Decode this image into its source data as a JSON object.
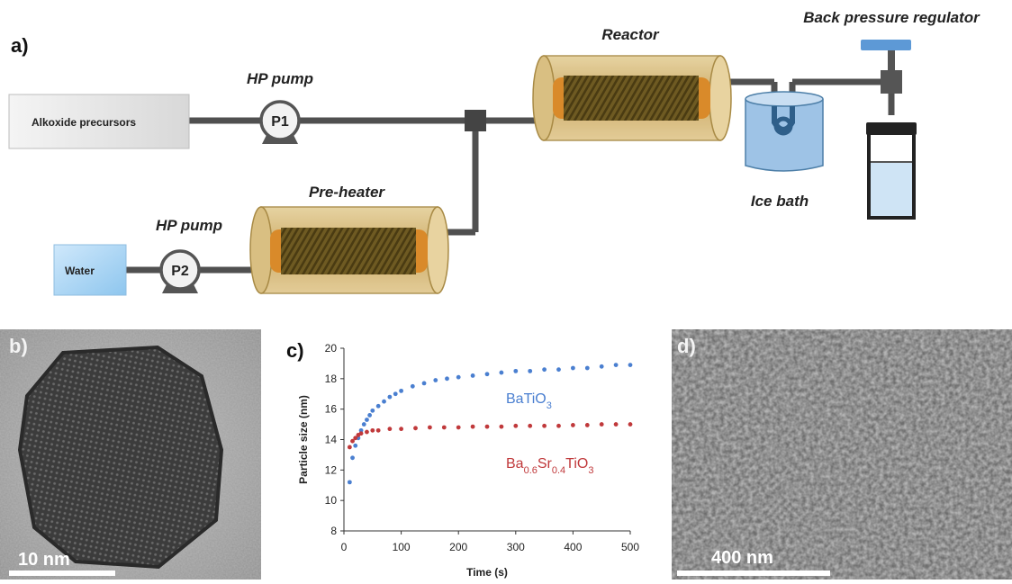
{
  "panel_a": {
    "label": "a)",
    "alkoxide_label": "Alkoxide precursors",
    "water_label": "Water",
    "pump1_name": "P1",
    "pump2_name": "P2",
    "pump1_caption": "HP pump",
    "pump2_caption": "HP pump",
    "preheater_label": "Pre-heater",
    "reactor_label": "Reactor",
    "ice_bath_label": "Ice bath",
    "bpr_label": "Back pressure regulator"
  },
  "panel_b": {
    "label": "b)",
    "scale_label": "10 nm"
  },
  "panel_d": {
    "label": "d)",
    "scale_label": "400 nm"
  },
  "chart_data": {
    "label": "c)",
    "type": "scatter",
    "title": "",
    "xlabel": "Time (s)",
    "ylabel": "Particle size (nm)",
    "xlim": [
      0,
      500
    ],
    "ylim": [
      8,
      20
    ],
    "x_ticks": [
      0,
      100,
      200,
      300,
      400,
      500
    ],
    "y_ticks": [
      8,
      10,
      12,
      14,
      16,
      18,
      20
    ],
    "grid": false,
    "series": [
      {
        "name_parts": [
          {
            "t": "BaTiO"
          },
          {
            "t": "3",
            "sub": true
          }
        ],
        "color": "#4a7fd0",
        "points": [
          [
            10,
            11.2
          ],
          [
            15,
            12.8
          ],
          [
            20,
            13.6
          ],
          [
            25,
            14.1
          ],
          [
            30,
            14.6
          ],
          [
            35,
            15.0
          ],
          [
            40,
            15.3
          ],
          [
            45,
            15.6
          ],
          [
            50,
            15.9
          ],
          [
            60,
            16.2
          ],
          [
            70,
            16.5
          ],
          [
            80,
            16.8
          ],
          [
            90,
            17.0
          ],
          [
            100,
            17.2
          ],
          [
            120,
            17.5
          ],
          [
            140,
            17.7
          ],
          [
            160,
            17.9
          ],
          [
            180,
            18.0
          ],
          [
            200,
            18.1
          ],
          [
            225,
            18.2
          ],
          [
            250,
            18.3
          ],
          [
            275,
            18.4
          ],
          [
            300,
            18.5
          ],
          [
            325,
            18.5
          ],
          [
            350,
            18.6
          ],
          [
            375,
            18.6
          ],
          [
            400,
            18.7
          ],
          [
            425,
            18.7
          ],
          [
            450,
            18.8
          ],
          [
            475,
            18.9
          ],
          [
            500,
            18.9
          ]
        ]
      },
      {
        "name_parts": [
          {
            "t": "Ba"
          },
          {
            "t": "0.6",
            "sub": true
          },
          {
            "t": "Sr"
          },
          {
            "t": "0.4",
            "sub": true
          },
          {
            "t": "TiO"
          },
          {
            "t": "3",
            "sub": true
          }
        ],
        "color": "#c0393b",
        "points": [
          [
            10,
            13.5
          ],
          [
            15,
            13.9
          ],
          [
            20,
            14.1
          ],
          [
            25,
            14.3
          ],
          [
            30,
            14.4
          ],
          [
            40,
            14.5
          ],
          [
            50,
            14.6
          ],
          [
            60,
            14.6
          ],
          [
            80,
            14.7
          ],
          [
            100,
            14.7
          ],
          [
            125,
            14.75
          ],
          [
            150,
            14.8
          ],
          [
            175,
            14.8
          ],
          [
            200,
            14.8
          ],
          [
            225,
            14.85
          ],
          [
            250,
            14.85
          ],
          [
            275,
            14.85
          ],
          [
            300,
            14.9
          ],
          [
            325,
            14.9
          ],
          [
            350,
            14.9
          ],
          [
            375,
            14.9
          ],
          [
            400,
            14.95
          ],
          [
            425,
            14.95
          ],
          [
            450,
            15.0
          ],
          [
            475,
            15.0
          ],
          [
            500,
            15.0
          ]
        ]
      }
    ]
  }
}
